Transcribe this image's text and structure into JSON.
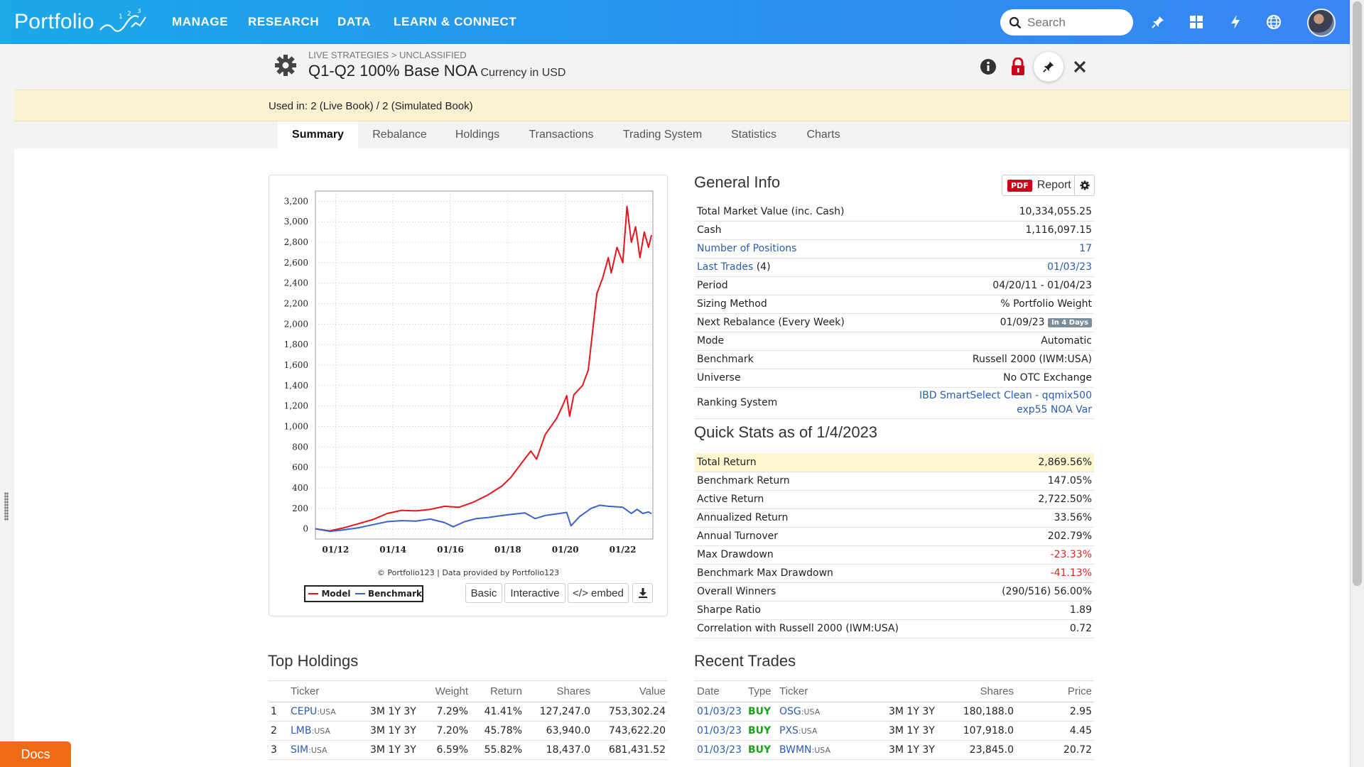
{
  "nav": {
    "logo": "Portfolio",
    "items": [
      "MANAGE",
      "RESEARCH",
      "DATA",
      "LEARN & CONNECT"
    ],
    "search_placeholder": "Search",
    "icons": [
      "pin-icon",
      "grid-icon",
      "lightning-icon",
      "globe-icon"
    ]
  },
  "header": {
    "breadcrumb": "LIVE STRATEGIES > UNCLASSIFIED",
    "title": "Q1-Q2 100% Base NOA",
    "currency": "Currency in USD",
    "used_in": "Used in: 2 (Live Book) / 2 (Simulated Book)"
  },
  "tabs": [
    "Summary",
    "Rebalance",
    "Holdings",
    "Transactions",
    "Trading System",
    "Statistics",
    "Charts"
  ],
  "active_tab": "Summary",
  "chart_data": {
    "type": "line",
    "x_tick_labels": [
      "01/12",
      "01/14",
      "01/16",
      "01/18",
      "01/20",
      "01/22"
    ],
    "y_ticks": [
      0,
      200,
      400,
      600,
      800,
      1000,
      1200,
      1400,
      1600,
      1800,
      2000,
      2200,
      2400,
      2600,
      2800,
      3000,
      3200
    ],
    "y_tick_labels": [
      "0",
      "200",
      "400",
      "600",
      "800",
      "1,000",
      "1,200",
      "1,400",
      "1,600",
      "1,800",
      "2,000",
      "2,200",
      "2,400",
      "2,600",
      "2,800",
      "3,000",
      "3,200"
    ],
    "x_range": [
      2011.3,
      2023.05
    ],
    "ylim": [
      -100,
      3300
    ],
    "grid": true,
    "series": [
      {
        "name": "Model",
        "color": "#e8141c",
        "points": [
          [
            2011.3,
            0
          ],
          [
            2011.8,
            -20
          ],
          [
            2012.3,
            10
          ],
          [
            2012.8,
            50
          ],
          [
            2013.3,
            90
          ],
          [
            2013.8,
            150
          ],
          [
            2014.3,
            180
          ],
          [
            2014.8,
            175
          ],
          [
            2015.3,
            190
          ],
          [
            2015.8,
            220
          ],
          [
            2016.3,
            210
          ],
          [
            2016.8,
            260
          ],
          [
            2017.3,
            330
          ],
          [
            2017.8,
            420
          ],
          [
            2018.1,
            500
          ],
          [
            2018.5,
            650
          ],
          [
            2018.8,
            760
          ],
          [
            2019.0,
            680
          ],
          [
            2019.3,
            920
          ],
          [
            2019.7,
            1080
          ],
          [
            2019.9,
            1200
          ],
          [
            2020.05,
            1300
          ],
          [
            2020.15,
            1100
          ],
          [
            2020.3,
            1310
          ],
          [
            2020.6,
            1400
          ],
          [
            2020.8,
            1550
          ],
          [
            2021.0,
            2050
          ],
          [
            2021.1,
            2300
          ],
          [
            2021.3,
            2450
          ],
          [
            2021.5,
            2650
          ],
          [
            2021.6,
            2500
          ],
          [
            2021.8,
            2750
          ],
          [
            2022.0,
            2600
          ],
          [
            2022.15,
            3150
          ],
          [
            2022.3,
            2800
          ],
          [
            2022.45,
            2950
          ],
          [
            2022.6,
            2650
          ],
          [
            2022.75,
            2900
          ],
          [
            2022.9,
            2750
          ],
          [
            2023.0,
            2870
          ]
        ]
      },
      {
        "name": "Benchmark",
        "color": "#3a62c8",
        "points": [
          [
            2011.3,
            0
          ],
          [
            2011.8,
            -25
          ],
          [
            2012.3,
            -10
          ],
          [
            2012.8,
            10
          ],
          [
            2013.3,
            40
          ],
          [
            2013.8,
            70
          ],
          [
            2014.3,
            80
          ],
          [
            2014.8,
            75
          ],
          [
            2015.3,
            95
          ],
          [
            2015.8,
            60
          ],
          [
            2016.1,
            20
          ],
          [
            2016.5,
            70
          ],
          [
            2016.9,
            100
          ],
          [
            2017.3,
            110
          ],
          [
            2017.8,
            130
          ],
          [
            2018.1,
            140
          ],
          [
            2018.6,
            155
          ],
          [
            2018.95,
            100
          ],
          [
            2019.3,
            130
          ],
          [
            2019.8,
            150
          ],
          [
            2020.05,
            160
          ],
          [
            2020.2,
            30
          ],
          [
            2020.5,
            120
          ],
          [
            2020.9,
            200
          ],
          [
            2021.2,
            230
          ],
          [
            2021.5,
            220
          ],
          [
            2021.8,
            215
          ],
          [
            2022.0,
            210
          ],
          [
            2022.3,
            150
          ],
          [
            2022.5,
            190
          ],
          [
            2022.7,
            150
          ],
          [
            2022.9,
            165
          ],
          [
            2023.0,
            147
          ]
        ]
      }
    ],
    "legend": [
      "Model",
      "Benchmark"
    ],
    "copyright": "© Portfolio123 | Data provided by Portfolio123"
  },
  "chart_buttons": [
    "Basic",
    "Interactive",
    "</> embed"
  ],
  "general_info": {
    "title": "General Info",
    "report_label": "Report",
    "pdf_label": "PDF",
    "rows": [
      {
        "label": "Total Market Value (inc. Cash)",
        "value": "10,334,055.25"
      },
      {
        "label": "Cash",
        "value": "1,116,097.15"
      },
      {
        "label": "Number of Positions",
        "value": "17"
      },
      {
        "label": "Last Trades",
        "label_suffix": " (4)",
        "value": "01/03/23"
      },
      {
        "label": "Period",
        "value": "04/20/11 - 01/04/23"
      },
      {
        "label": "Sizing Method",
        "value": "% Portfolio Weight"
      },
      {
        "label": "Next Rebalance (Every Week)",
        "value": "01/09/23",
        "badge": "In 4 Days"
      },
      {
        "label": "Mode",
        "value": "Automatic"
      },
      {
        "label": "Benchmark",
        "value": "Russell 2000 (IWM:USA)"
      },
      {
        "label": "Universe",
        "value": "No OTC Exchange"
      },
      {
        "label": "Ranking System",
        "value": "IBD SmartSelect Clean - qqmix500",
        "value2": "exp55 NOA Var"
      }
    ]
  },
  "quick_stats": {
    "title": "Quick Stats as of 1/4/2023",
    "rows": [
      {
        "label": "Total Return",
        "value": "2,869.56%"
      },
      {
        "label": "Benchmark Return",
        "value": "147.05%"
      },
      {
        "label": "Active Return",
        "value": "2,722.50%"
      },
      {
        "label": "Annualized Return",
        "value": "33.56%"
      },
      {
        "label": "Annual Turnover",
        "value": "202.79%"
      },
      {
        "label": "Max Drawdown",
        "value": "-23.33%"
      },
      {
        "label": "Benchmark Max Drawdown",
        "value": "-41.13%"
      },
      {
        "label": "Overall Winners",
        "value": "(290/516) 56.00%"
      },
      {
        "label": "Sharpe Ratio",
        "value": "1.89"
      },
      {
        "label": "Correlation with Russell 2000 (IWM:USA)",
        "value": "0.72"
      }
    ]
  },
  "top_holdings": {
    "title": "Top Holdings",
    "headers": [
      "Ticker",
      "Weight",
      "Return",
      "Shares",
      "Value"
    ],
    "periods": "3M 1Y 3Y",
    "rows": [
      {
        "n": "1",
        "ticker": "CEPU",
        "suffix": ":USA",
        "weight": "7.29%",
        "ret": "41.41%",
        "shares": "127,247.0",
        "value": "753,302.24"
      },
      {
        "n": "2",
        "ticker": "LMB",
        "suffix": ":USA",
        "weight": "7.20%",
        "ret": "45.78%",
        "shares": "63,940.0",
        "value": "743,622.20"
      },
      {
        "n": "3",
        "ticker": "SIM",
        "suffix": ":USA",
        "weight": "6.59%",
        "ret": "55.82%",
        "shares": "18,437.0",
        "value": "681,431.52"
      }
    ]
  },
  "recent_trades": {
    "title": "Recent Trades",
    "headers": [
      "Date",
      "Type",
      "Ticker",
      "Shares",
      "Price"
    ],
    "periods": "3M 1Y 3Y",
    "rows": [
      {
        "date": "01/03/23",
        "type": "BUY",
        "ticker": "OSG",
        "suffix": ":USA",
        "shares": "180,188.0",
        "price": "2.95"
      },
      {
        "date": "01/03/23",
        "type": "BUY",
        "ticker": "PXS",
        "suffix": ":USA",
        "shares": "107,918.0",
        "price": "4.45"
      },
      {
        "date": "01/03/23",
        "type": "BUY",
        "ticker": "BWMN",
        "suffix": ":USA",
        "shares": "23,845.0",
        "price": "20.72"
      }
    ]
  },
  "docs_label": "Docs"
}
